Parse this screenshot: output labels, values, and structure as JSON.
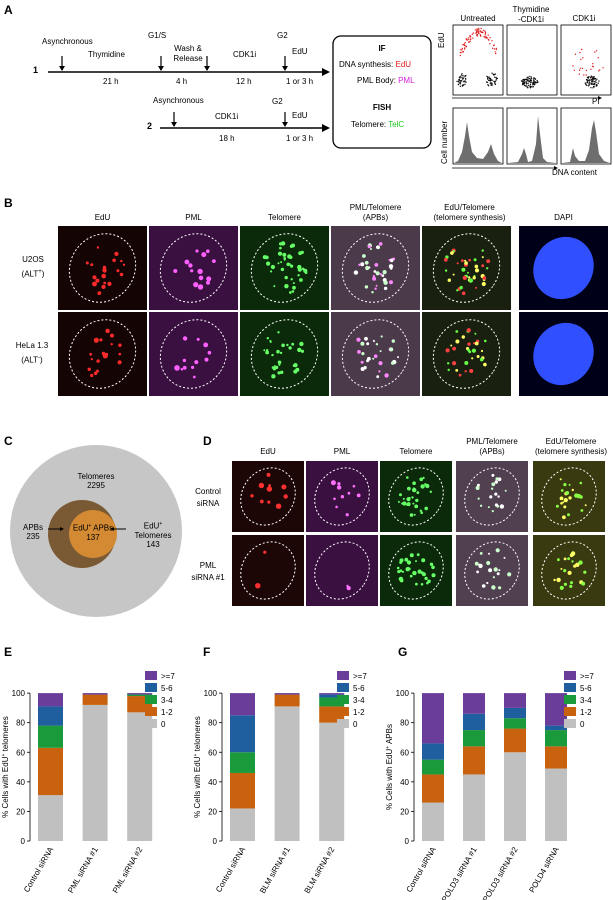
{
  "panels": {
    "A": "A",
    "B": "B",
    "C": "C",
    "D": "D",
    "E": "E",
    "F": "F",
    "G": "G"
  },
  "panelA": {
    "row1_num": "1",
    "row2_num": "2",
    "async1": "Asynchronous",
    "thymidine": "Thymidine",
    "t21": "21 h",
    "g1s": "G1/S",
    "wash": "Wash &",
    "release": "Release",
    "t4": "4 h",
    "cdk1i": "CDK1i",
    "t12": "12 h",
    "g2": "G2",
    "edu": "EdU",
    "t13": "1 or 3 h",
    "async2": "Asynchronous",
    "cdk1i2": "CDK1i",
    "t18": "18 h",
    "g2b": "G2",
    "edu2": "EdU",
    "t13b": "1 or 3 h",
    "box_if": "IF",
    "dna_syn": "DNA synthesis:",
    "dna_syn_val": "EdU",
    "pml_body": "PML Body:",
    "pml_body_val": "PML",
    "box_fish": "FISH",
    "telomere": "Telomere:",
    "telomere_val": "TelC",
    "facs_cols": [
      "Untreated",
      "Thymidine\n-CDK1i",
      "CDK1i"
    ],
    "facs_ylabel": "EdU",
    "facs_xlabel": "PI",
    "hist_ylabel": "Cell number",
    "hist_xlabel": "DNA content",
    "colors": {
      "edu": "#e01818",
      "pml": "#d81fd8",
      "telc": "#21c421"
    }
  },
  "panelB": {
    "cols": [
      "EdU",
      "PML",
      "Telomere",
      "PML/Telomere\n(APBs)",
      "EdU/Telomere\n(telomere synthesis)",
      "DAPI"
    ],
    "rows": [
      {
        "name": "U2OS",
        "sup": "ALT",
        "sign": "+"
      },
      {
        "name": "HeLa 1.3",
        "sup": "ALT",
        "sign": "-"
      }
    ]
  },
  "panelC": {
    "telomeres_label": "Telomeres",
    "telomeres_n": "2295",
    "apbs_label": "APBs",
    "apbs_n": "235",
    "edu_apbs_label": "EdU",
    "edu_apbs_label2": "APBs",
    "edu_apbs_n": "137",
    "edu_tel_label": "EdU",
    "edu_tel_label2": "Telomeres",
    "edu_tel_n": "143",
    "plus": "+"
  },
  "panelD": {
    "cols": [
      "EdU",
      "PML",
      "Telomere",
      "PML/Telomere\n(APBs)",
      "EdU/Telomere\n(telomere synthesis)"
    ],
    "rows": [
      "Control\nsiRNA",
      "PML\nsiRNA #1"
    ]
  },
  "legend": [
    ">=7",
    "5-6",
    "3-4",
    "1-2",
    "0"
  ],
  "legend_colors": [
    "#6a3d9a",
    "#1f5fa0",
    "#1a9a3a",
    "#c8620e",
    "#c0c0c0"
  ],
  "chart_data": [
    {
      "type": "bar",
      "stacked": true,
      "title": "E",
      "ylabel": "% Cells with EdU+ telomeres",
      "ylim": [
        0,
        100
      ],
      "categories": [
        "Control siRNA",
        "PML siRNA #1",
        "PML siRNA #2"
      ],
      "series": [
        {
          "name": "0",
          "values": [
            31,
            92,
            87
          ]
        },
        {
          "name": "1-2",
          "values": [
            32,
            7,
            11
          ]
        },
        {
          "name": "3-4",
          "values": [
            15,
            0,
            1
          ]
        },
        {
          "name": "5-6",
          "values": [
            13,
            0,
            0
          ]
        },
        {
          "name": ">=7",
          "values": [
            9,
            1,
            1
          ]
        }
      ]
    },
    {
      "type": "bar",
      "stacked": true,
      "title": "F",
      "ylabel": "% Cells with EdU+ telomeres",
      "ylim": [
        0,
        100
      ],
      "categories": [
        "Control siRNA",
        "BLM siRNA #1",
        "BLM siRNA #2"
      ],
      "series": [
        {
          "name": "0",
          "values": [
            22,
            91,
            80
          ]
        },
        {
          "name": "1-2",
          "values": [
            24,
            8,
            11
          ]
        },
        {
          "name": "3-4",
          "values": [
            14,
            0,
            6
          ]
        },
        {
          "name": "5-6",
          "values": [
            25,
            0,
            2
          ]
        },
        {
          "name": ">=7",
          "values": [
            15,
            1,
            1
          ]
        }
      ]
    },
    {
      "type": "bar",
      "stacked": true,
      "title": "G",
      "ylabel": "% Cells with EdU+ APBs",
      "ylim": [
        0,
        100
      ],
      "categories": [
        "Control siRNA",
        "POLD3 siRNA #1",
        "POLD3 siRNA #2",
        "POLD4 siRNA"
      ],
      "series": [
        {
          "name": "0",
          "values": [
            26,
            45,
            60,
            49
          ]
        },
        {
          "name": "1-2",
          "values": [
            19,
            19,
            16,
            15
          ]
        },
        {
          "name": "3-4",
          "values": [
            10,
            11,
            7,
            11
          ]
        },
        {
          "name": "5-6",
          "values": [
            11,
            11,
            7,
            3
          ]
        },
        {
          "name": ">=7",
          "values": [
            34,
            14,
            10,
            22
          ]
        }
      ]
    }
  ]
}
